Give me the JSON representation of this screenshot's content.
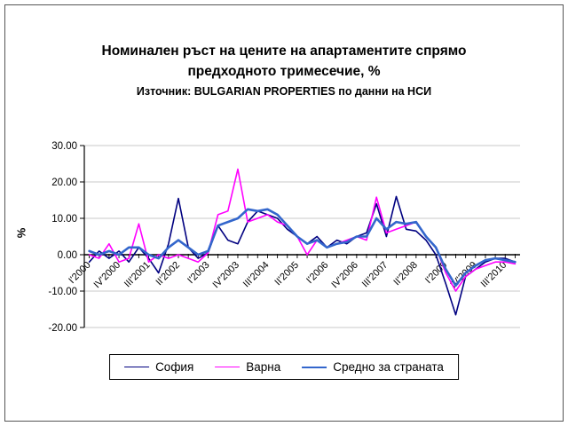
{
  "title": {
    "line1": "Номинален ръст на цените на апартаментите спрямо",
    "line2": "предходното тримесечие, %",
    "subtitle": "Източник: BULGARIAN PROPERTIES по данни на НСИ"
  },
  "chart_data": {
    "type": "line",
    "ylabel": "%",
    "ylim": [
      -20,
      30
    ],
    "ytick_step": 10,
    "ytick_labels": [
      "-20.00",
      "-10.00",
      "0.00",
      "10.00",
      "20.00",
      "30.00"
    ],
    "grid": true,
    "legend_position": "bottom",
    "x_label_every": 3,
    "categories": [
      "I'2000",
      "II'2000",
      "III'2000",
      "IV'2000",
      "I'2001",
      "II'2001",
      "III'2001",
      "IV'2001",
      "I'2002",
      "II'2002",
      "III'2002",
      "IV'2002",
      "I'2003",
      "II'2003",
      "III'2003",
      "IV'2003",
      "I'2004",
      "II'2004",
      "III'2004",
      "IV'2004",
      "I'2005",
      "II'2005",
      "III'2005",
      "IV'2005",
      "I'2006",
      "II'2006",
      "III'2006",
      "IV'2006",
      "I'2007",
      "II'2007",
      "III'2007",
      "IV'2007",
      "I'2008",
      "II'2008",
      "III'2008",
      "IV'2008",
      "I'2009",
      "II'2009",
      "III'2009",
      "IV'2009",
      "I'2010",
      "II'2010",
      "III'2010",
      "IV'2010"
    ],
    "visible_x_labels": [
      "I'2000",
      "IV'2000",
      "III'2001",
      "II'2002",
      "I'2003",
      "IV'2003",
      "III'2004",
      "II'2005",
      "I'2006",
      "IV'2006",
      "III'2007",
      "II'2008",
      "I'2009",
      "IV'2009",
      "III'2010"
    ],
    "series": [
      {
        "name": "София",
        "color": "#000080",
        "width": 1.6,
        "values": [
          -2,
          1,
          -1,
          1,
          -2,
          2,
          -1,
          -5,
          3,
          15.5,
          2,
          -1,
          0.5,
          8,
          4,
          3,
          9,
          12,
          11,
          10,
          7,
          5,
          3,
          5,
          2,
          4,
          3,
          5,
          6,
          14,
          5,
          16,
          7,
          6.5,
          4,
          0,
          -8,
          -16.5,
          -6,
          -4,
          -2,
          -1,
          -1,
          -2
        ]
      },
      {
        "name": "Варна",
        "color": "#FF00FF",
        "width": 1.6,
        "values": [
          0,
          -1,
          3,
          -2,
          -1,
          8.5,
          -2,
          0,
          -1,
          0,
          -1,
          -2,
          0.5,
          11,
          12,
          23.5,
          9,
          10,
          11,
          9,
          8,
          5,
          0,
          4,
          2,
          3,
          4,
          5,
          4,
          15.8,
          6,
          7,
          8,
          9,
          5,
          2,
          -5,
          -10,
          -6,
          -4,
          -3,
          -2,
          -2,
          -2.5
        ]
      },
      {
        "name": "Средно за страната",
        "color": "#3366CC",
        "width": 2.6,
        "values": [
          1,
          0,
          1,
          0,
          2,
          2,
          0,
          -1,
          2,
          4,
          2,
          0,
          1,
          8,
          9,
          10,
          12.5,
          12,
          12.5,
          11,
          8,
          5,
          3,
          4,
          2,
          3,
          3.5,
          5,
          5,
          10,
          7,
          9,
          8.5,
          9,
          5,
          2,
          -4,
          -8.5,
          -5,
          -3,
          -1.5,
          -1,
          -1.5,
          -2
        ]
      }
    ]
  }
}
